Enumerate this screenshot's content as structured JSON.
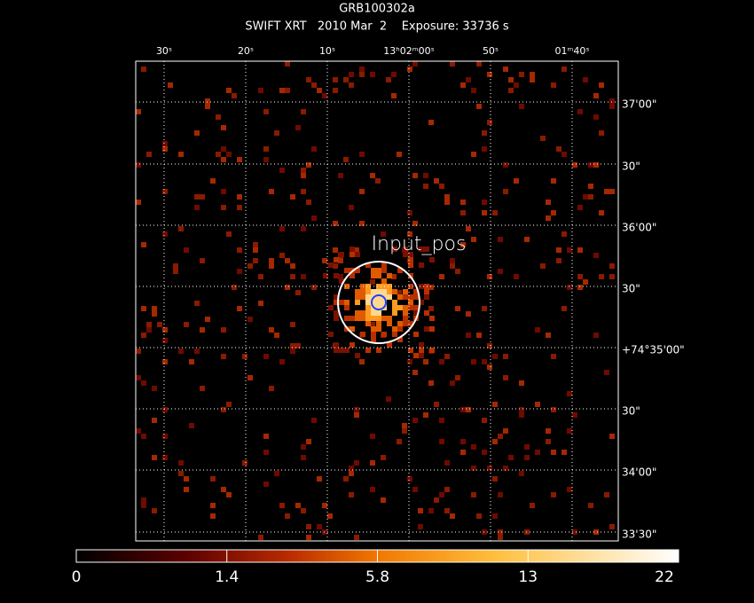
{
  "header": {
    "title": "GRB100302a",
    "subtitle": "SWIFT XRT   2010 Mar  2    Exposure: 33736 s"
  },
  "image": {
    "annotation": "Input_pos",
    "ra_labels": [
      "30ˢ",
      "20ˢ",
      "10ˢ",
      "13ʰ02ᵐ00ˢ",
      "50ˢ",
      "01ᵐ40ˢ"
    ],
    "dec_labels": [
      "37'00\"",
      "30\"",
      "36'00\"",
      "30\"",
      "+74°35'00\"",
      "30\"",
      "34'00\"",
      "33'30\""
    ]
  },
  "colorbar": {
    "ticks": [
      0,
      1.4,
      5.8,
      13,
      22
    ]
  }
}
